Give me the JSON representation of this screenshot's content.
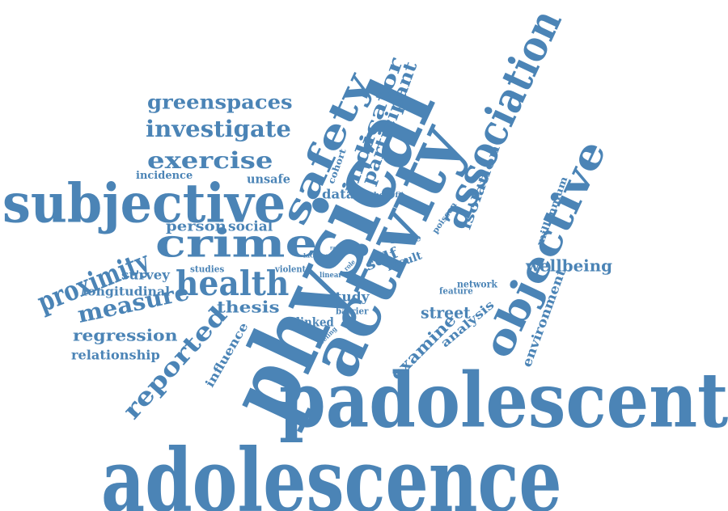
{
  "style": {
    "word_color": "#4b84b6",
    "background": "#ffffff"
  },
  "words": [
    {
      "text": "adolescence"
    },
    {
      "text": "padolescent"
    },
    {
      "text": "physical"
    },
    {
      "text": "activity"
    },
    {
      "text": "subjective"
    },
    {
      "text": "association"
    },
    {
      "text": "objective"
    },
    {
      "text": "crime"
    },
    {
      "text": "safety"
    },
    {
      "text": "health"
    },
    {
      "text": "proximity"
    },
    {
      "text": "measure"
    },
    {
      "text": "reported"
    },
    {
      "text": "exercise"
    },
    {
      "text": "investigate"
    },
    {
      "text": "greenspaces"
    },
    {
      "text": "indicator"
    },
    {
      "text": "participant"
    },
    {
      "text": "wellbeing"
    },
    {
      "text": "regression"
    },
    {
      "text": "relationship"
    },
    {
      "text": "longitudinal"
    },
    {
      "text": "survey"
    },
    {
      "text": "thesis"
    },
    {
      "text": "examine"
    },
    {
      "text": "street"
    },
    {
      "text": "environment"
    },
    {
      "text": "millennium"
    },
    {
      "text": "isolation"
    },
    {
      "text": "influence"
    },
    {
      "text": "analysis"
    },
    {
      "text": "incidence"
    },
    {
      "text": "unsafe"
    },
    {
      "text": "person"
    },
    {
      "text": "social"
    },
    {
      "text": "data"
    },
    {
      "text": "cohort"
    },
    {
      "text": "self"
    },
    {
      "text": "result"
    },
    {
      "text": "study"
    },
    {
      "text": "linked"
    },
    {
      "text": "barrier"
    },
    {
      "text": "poisson"
    },
    {
      "text": "place"
    },
    {
      "text": "network"
    },
    {
      "text": "feature"
    },
    {
      "text": "benefit"
    },
    {
      "text": "studies"
    },
    {
      "text": "violent"
    },
    {
      "text": "linear"
    },
    {
      "text": "role"
    },
    {
      "text": "lack"
    },
    {
      "text": "zero"
    },
    {
      "text": "rate"
    },
    {
      "text": "feeling"
    }
  ]
}
